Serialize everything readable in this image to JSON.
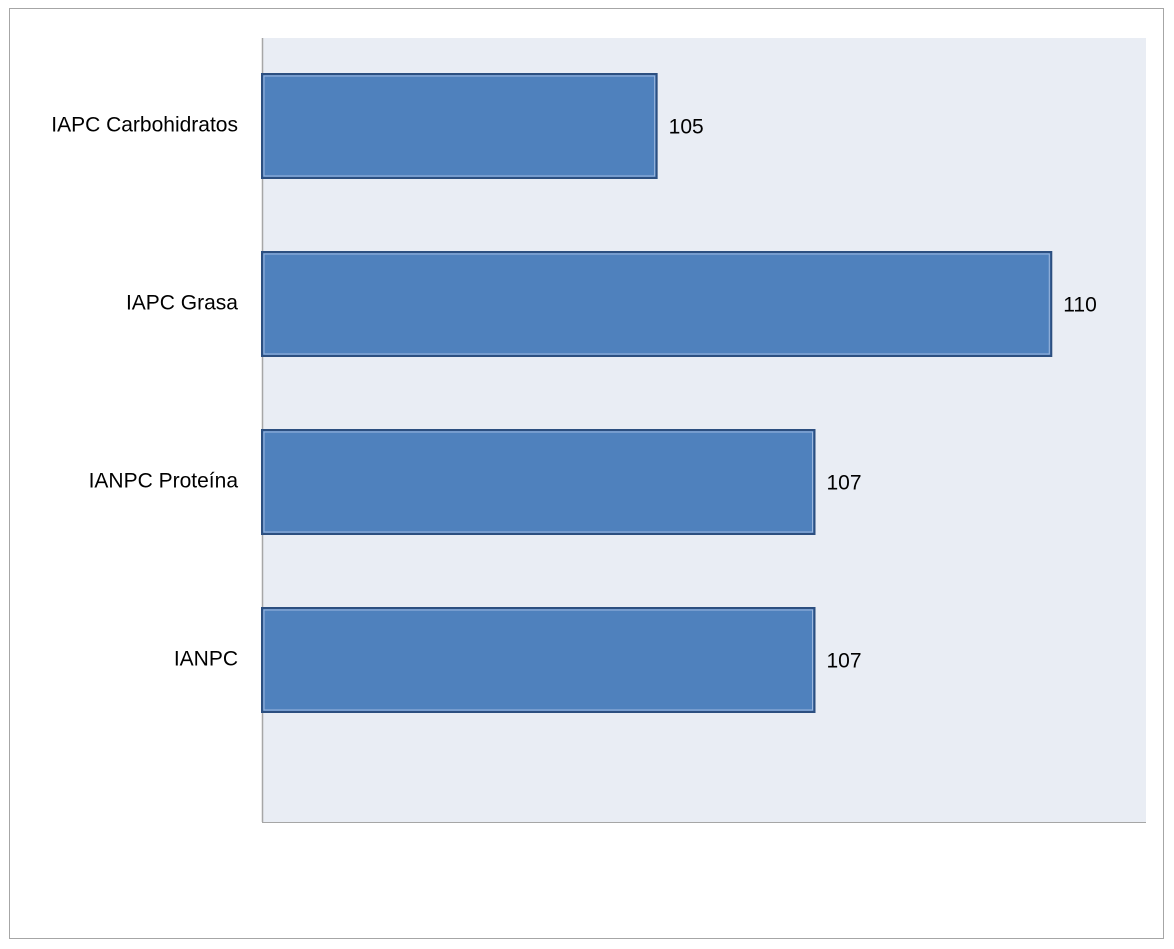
{
  "chart_data": {
    "type": "bar",
    "orientation": "horizontal",
    "categories": [
      "IAPC Carbohidratos",
      "IAPC Grasa",
      "IANPC Proteína",
      "IANPC"
    ],
    "values": [
      105,
      110,
      107,
      107
    ],
    "data_labels": [
      "105",
      "110",
      "107",
      "107"
    ],
    "title": "",
    "xlabel": "",
    "ylabel": "",
    "xlim": [
      100,
      111.2
    ],
    "grid": false,
    "legend": "none",
    "colors": {
      "bar_fill": "#4f81bd",
      "bar_edge": "#2c4f80",
      "plot_background": "#e9edf4",
      "axis_line": "#a6a6a6"
    }
  }
}
